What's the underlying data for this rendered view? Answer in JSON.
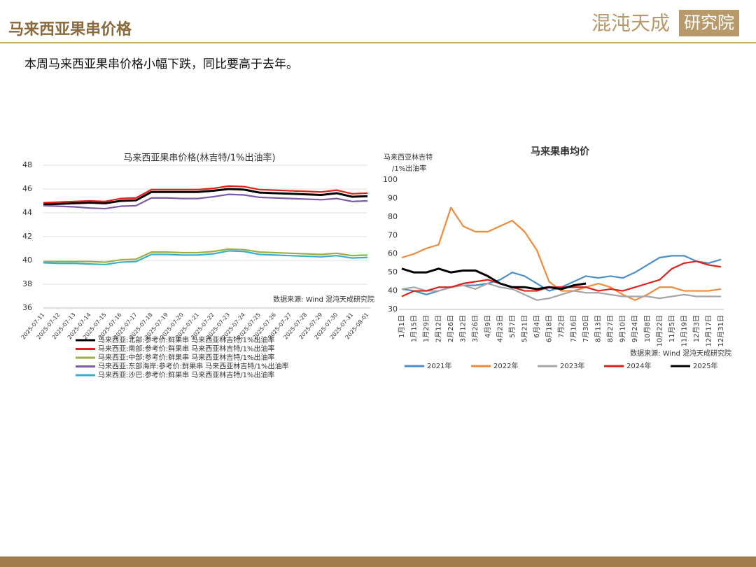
{
  "header": {
    "title": "马来西亚果串价格",
    "logo": [
      "混沌天成",
      "研究院"
    ]
  },
  "summary": "本周马来西亚果串价格小幅下跌，同比要高于去年。",
  "chart_data": [
    {
      "type": "line",
      "title": "马来西亚果串价格(林吉特/1%出油率)",
      "note": "数据来源: Wind 混沌天成研究院",
      "categories": [
        "2025-07-11",
        "2025-07-12",
        "2025-07-13",
        "2025-07-14",
        "2025-07-15",
        "2025-07-16",
        "2025-07-17",
        "2025-07-18",
        "2025-07-19",
        "2025-07-20",
        "2025-07-21",
        "2025-07-22",
        "2025-07-23",
        "2025-07-24",
        "2025-07-25",
        "2025-07-26",
        "2025-07-27",
        "2025-07-28",
        "2025-07-29",
        "2025-07-30",
        "2025-07-31",
        "2025-08-01"
      ],
      "series": [
        {
          "name": "马来西亚:北部:参考价:鲜果串 马来西亚林吉特/1%出油率",
          "color": "#000000",
          "values": [
            44.7,
            44.75,
            44.8,
            44.85,
            44.8,
            45.0,
            45.05,
            45.75,
            45.75,
            45.75,
            45.75,
            45.85,
            46.0,
            45.95,
            45.7,
            45.65,
            45.6,
            45.55,
            45.5,
            45.65,
            45.35,
            45.4
          ]
        },
        {
          "name": "马来西亚:南部:参考价:鲜果串 马来西亚林吉特/1%出油率",
          "color": "#e0201b",
          "values": [
            44.85,
            44.9,
            44.95,
            45.0,
            44.95,
            45.2,
            45.25,
            45.95,
            45.95,
            45.95,
            45.95,
            46.05,
            46.25,
            46.2,
            45.95,
            45.9,
            45.85,
            45.8,
            45.75,
            45.9,
            45.6,
            45.65
          ]
        },
        {
          "name": "马来西亚:中部:参考价:鲜果串 马来西亚林吉特/1%出油率",
          "color": "#9bb040",
          "values": [
            39.9,
            39.9,
            39.9,
            39.9,
            39.85,
            40.05,
            40.1,
            40.7,
            40.7,
            40.65,
            40.65,
            40.75,
            40.95,
            40.9,
            40.7,
            40.65,
            40.6,
            40.55,
            40.5,
            40.6,
            40.4,
            40.45
          ]
        },
        {
          "name": "马来西亚:东部海岸:参考价:鲜果串 马来西亚林吉特/1%出油率",
          "color": "#7b5aa6",
          "values": [
            44.6,
            44.55,
            44.5,
            44.4,
            44.35,
            44.55,
            44.6,
            45.25,
            45.25,
            45.2,
            45.2,
            45.35,
            45.55,
            45.5,
            45.3,
            45.25,
            45.2,
            45.15,
            45.1,
            45.2,
            44.95,
            45.0
          ]
        },
        {
          "name": "马来西亚:沙巴:参考价:鲜果串 马来西亚林吉特/1%出油率",
          "color": "#3aaecb",
          "values": [
            39.8,
            39.75,
            39.75,
            39.7,
            39.65,
            39.85,
            39.9,
            40.5,
            40.5,
            40.45,
            40.45,
            40.55,
            40.8,
            40.75,
            40.5,
            40.45,
            40.4,
            40.35,
            40.3,
            40.4,
            40.2,
            40.25
          ]
        }
      ],
      "ylim": [
        36,
        48
      ],
      "yticks": [
        36,
        38,
        40,
        42,
        44,
        46,
        48
      ],
      "grid": true,
      "legend": "bottom"
    },
    {
      "type": "line",
      "title": "马来果串均价",
      "ylabel": [
        "马来西亚林吉特",
        "/1%出油率"
      ],
      "note": "数据来源: Wind  混沌天成研究院",
      "categories": [
        "1月1日",
        "1月15日",
        "1月29日",
        "2月12日",
        "2月26日",
        "3月12日",
        "3月26日",
        "4月9日",
        "4月23日",
        "5月7日",
        "5月21日",
        "6月4日",
        "6月18日",
        "7月2日",
        "7月16日",
        "7月30日",
        "8月13日",
        "8月27日",
        "9月10日",
        "9月24日",
        "10月8日",
        "10月22日",
        "11月5日",
        "11月19日",
        "12月3日",
        "12月17日",
        "12月31日"
      ],
      "series": [
        {
          "name": "2021年",
          "color": "#4a8fc9",
          "values": [
            41,
            40,
            38,
            40,
            42,
            43,
            43,
            44,
            46,
            50,
            48,
            44,
            40,
            42,
            45,
            48,
            47,
            48,
            47,
            50,
            54,
            58,
            59,
            59,
            56,
            55,
            57
          ]
        },
        {
          "name": "2022年",
          "color": "#ee8a3a",
          "values": [
            58,
            60,
            63,
            65,
            85,
            75,
            72,
            72,
            75,
            78,
            72,
            62,
            45,
            40,
            40,
            42,
            44,
            42,
            38,
            35,
            38,
            42,
            42,
            40,
            40,
            40,
            41
          ]
        },
        {
          "name": "2023年",
          "color": "#a6a6a6",
          "values": [
            41,
            42,
            40,
            40,
            42,
            43,
            41,
            44,
            42,
            41,
            38,
            35,
            36,
            38,
            40,
            39,
            39,
            38,
            37,
            37,
            37,
            36,
            37,
            38,
            37,
            37,
            37
          ]
        },
        {
          "name": "2024年",
          "color": "#e0201b",
          "values": [
            37,
            40,
            40,
            42,
            42,
            44,
            45,
            46,
            44,
            42,
            40,
            40,
            42,
            42,
            42,
            42,
            40,
            41,
            40,
            42,
            44,
            46,
            52,
            55,
            56,
            54,
            53
          ]
        },
        {
          "name": "2025年",
          "color": "#000000",
          "values": [
            52,
            50,
            50,
            52,
            50,
            51,
            51,
            48,
            44,
            42,
            42,
            41,
            42,
            41,
            43,
            44,
            null,
            null,
            null,
            null,
            null,
            null,
            null,
            null,
            null,
            null,
            null
          ]
        }
      ],
      "ylim": [
        30,
        100
      ],
      "yticks": [
        30,
        40,
        50,
        60,
        70,
        80,
        90,
        100
      ],
      "grid": false,
      "legend": "bottom"
    }
  ]
}
